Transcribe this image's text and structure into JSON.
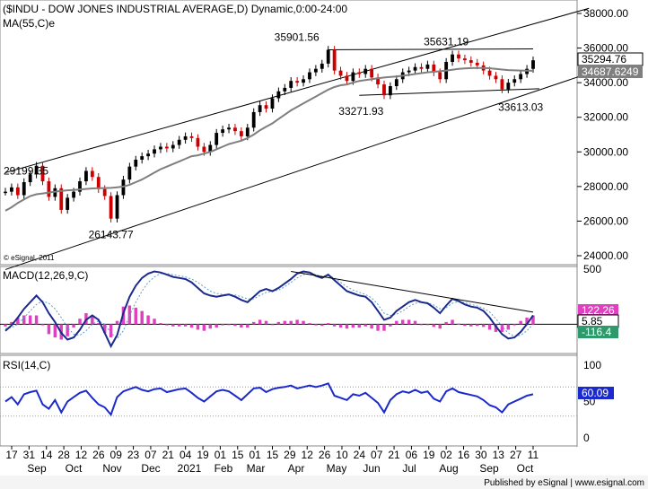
{
  "chart_data": [
    {
      "type": "line",
      "panel": "price",
      "title": "($INDU - DOW JONES INDUSTRIAL AVERAGE,D) Dynamic,0:00-24:00",
      "overlay_label": "MA(55,C)e",
      "xlabel": "",
      "ylabel": "",
      "ylim": [
        24000,
        38000
      ],
      "y_ticks": [
        "38000.00",
        "36000.00",
        "34000.00",
        "32000.00",
        "30000.00",
        "28000.00",
        "26000.00",
        "24000.00"
      ],
      "last_price": "35294.76",
      "ma_value": "34687.6249",
      "annotations": [
        "29199.35",
        "26143.77",
        "35901.56",
        "35631.19",
        "33271.93",
        "33613.03"
      ],
      "watermark": "© eSignal, 2011",
      "series": [
        {
          "name": "",
          "values": [
            27700,
            27950,
            27500,
            28250,
            28700,
            29199,
            28300,
            27400,
            27900,
            26650,
            27350,
            27700,
            28300,
            28900,
            28550,
            27850,
            27450,
            26143,
            27500,
            28400,
            29150,
            29550,
            29750,
            29900,
            30150,
            30300,
            30200,
            30400,
            30700,
            30900,
            30800,
            30300,
            30000,
            30400,
            31100,
            31300,
            31400,
            31200,
            30900,
            31400,
            32300,
            32700,
            32500,
            33100,
            33500,
            33700,
            34100,
            34000,
            34200,
            34600,
            34800,
            35100,
            35901,
            34700,
            34400,
            34100,
            34600,
            34500,
            34800,
            34300,
            33900,
            33271,
            33800,
            34200,
            34600,
            34700,
            34900,
            34800,
            35050,
            34600,
            34200,
            35200,
            35631,
            35400,
            35300,
            35150,
            35000,
            34700,
            34400,
            34200,
            33613,
            34000,
            34200,
            34500,
            34800,
            35294
          ]
        },
        {
          "name": "",
          "values": [
            26600,
            26800,
            27050,
            27250,
            27450,
            27550,
            27600,
            27650,
            27700,
            27750,
            27780,
            27800,
            27830,
            27860,
            27890,
            27900,
            27910,
            27920,
            27950,
            28000,
            28100,
            28250,
            28400,
            28600,
            28800,
            29000,
            29150,
            29300,
            29450,
            29600,
            29750,
            29800,
            29900,
            30000,
            30150,
            30300,
            30450,
            30550,
            30650,
            30800,
            31000,
            31250,
            31450,
            31650,
            31900,
            32150,
            32400,
            32600,
            32800,
            33000,
            33200,
            33400,
            33600,
            33750,
            33850,
            33900,
            34000,
            34100,
            34150,
            34200,
            34250,
            34300,
            34330,
            34360,
            34400,
            34450,
            34500,
            34550,
            34600,
            34630,
            34660,
            34700,
            34750,
            34800,
            34820,
            34840,
            34850,
            34850,
            34830,
            34800,
            34760,
            34730,
            34710,
            34700,
            34690,
            34687
          ]
        }
      ]
    },
    {
      "type": "line",
      "panel": "macd",
      "title": "MACD(12,26,9,C)",
      "ylim": [
        -250,
        500
      ],
      "y_ticks": [
        "500",
        "0"
      ],
      "readouts": [
        "122.26",
        "5.85",
        "-116.4"
      ],
      "series": [
        {
          "name": "",
          "values": [
            -60,
            -10,
            60,
            140,
            200,
            260,
            200,
            100,
            20,
            -80,
            -140,
            -120,
            -50,
            40,
            80,
            40,
            -80,
            -200,
            -100,
            100,
            250,
            350,
            420,
            460,
            480,
            470,
            450,
            430,
            420,
            410,
            380,
            330,
            280,
            260,
            250,
            260,
            270,
            250,
            220,
            200,
            250,
            300,
            320,
            300,
            330,
            370,
            410,
            460,
            480,
            470,
            440,
            420,
            450,
            400,
            350,
            300,
            280,
            260,
            250,
            200,
            120,
            40,
            60,
            120,
            160,
            200,
            220,
            200,
            190,
            150,
            100,
            170,
            230,
            210,
            180,
            160,
            150,
            120,
            60,
            -20,
            -90,
            -130,
            -120,
            -70,
            0,
            80
          ]
        },
        {
          "name": "",
          "values": [
            -40,
            -30,
            0,
            60,
            120,
            180,
            210,
            190,
            140,
            60,
            -30,
            -90,
            -100,
            -60,
            0,
            30,
            0,
            -80,
            -130,
            -60,
            80,
            200,
            300,
            380,
            430,
            460,
            460,
            450,
            440,
            430,
            410,
            380,
            340,
            300,
            280,
            270,
            270,
            265,
            250,
            230,
            230,
            260,
            290,
            300,
            310,
            340,
            380,
            420,
            450,
            460,
            450,
            435,
            440,
            420,
            380,
            340,
            310,
            290,
            270,
            240,
            180,
            100,
            80,
            90,
            120,
            160,
            190,
            200,
            195,
            175,
            140,
            150,
            190,
            205,
            195,
            180,
            165,
            145,
            110,
            50,
            -20,
            -80,
            -110,
            -100,
            -60,
            0
          ]
        }
      ]
    },
    {
      "type": "line",
      "panel": "rsi",
      "title": "RSI(14,C)",
      "ylim": [
        0,
        100
      ],
      "y_ticks": [
        "100",
        "50",
        "0"
      ],
      "readout": "60.09",
      "series": [
        {
          "name": "",
          "values": [
            50,
            56,
            46,
            60,
            63,
            65,
            46,
            40,
            52,
            35,
            50,
            56,
            62,
            65,
            55,
            46,
            42,
            32,
            56,
            64,
            67,
            70,
            66,
            64,
            67,
            68,
            63,
            65,
            67,
            68,
            62,
            55,
            50,
            57,
            64,
            66,
            64,
            58,
            52,
            60,
            68,
            69,
            63,
            67,
            69,
            70,
            72,
            68,
            70,
            72,
            70,
            72,
            75,
            58,
            55,
            52,
            60,
            58,
            62,
            55,
            48,
            35,
            52,
            60,
            64,
            62,
            66,
            62,
            64,
            54,
            50,
            64,
            68,
            63,
            61,
            59,
            57,
            52,
            45,
            42,
            35,
            46,
            50,
            54,
            58,
            60
          ]
        }
      ]
    }
  ],
  "x_axis": {
    "day_labels": [
      "17",
      "31",
      "14",
      "28",
      "12",
      "26",
      "09",
      "23",
      "07",
      "21",
      "04",
      "19",
      "01",
      "15",
      "01",
      "15",
      "29",
      "12",
      "26",
      "10",
      "24",
      "07",
      "21",
      "06",
      "19",
      "02",
      "16",
      "30",
      "13",
      "27",
      "11"
    ],
    "month_labels": [
      "Sep",
      "Oct",
      "Nov",
      "Dec",
      "2021",
      "Feb",
      "Mar",
      "Apr",
      "May",
      "Jun",
      "Jul",
      "Aug",
      "Sep",
      "Oct"
    ]
  },
  "footer": {
    "text": "Published by eSignal | www.esignal.com",
    "brand": "eSignal"
  },
  "colors": {
    "price": "#cc0000",
    "price_up": "#000000",
    "ma": "#7f7f7f",
    "macd": "#1b2a8c",
    "signal": "#5aa0c8",
    "histogram": "#e040c0",
    "rsi": "#1b2acc",
    "trend": "#000000"
  }
}
